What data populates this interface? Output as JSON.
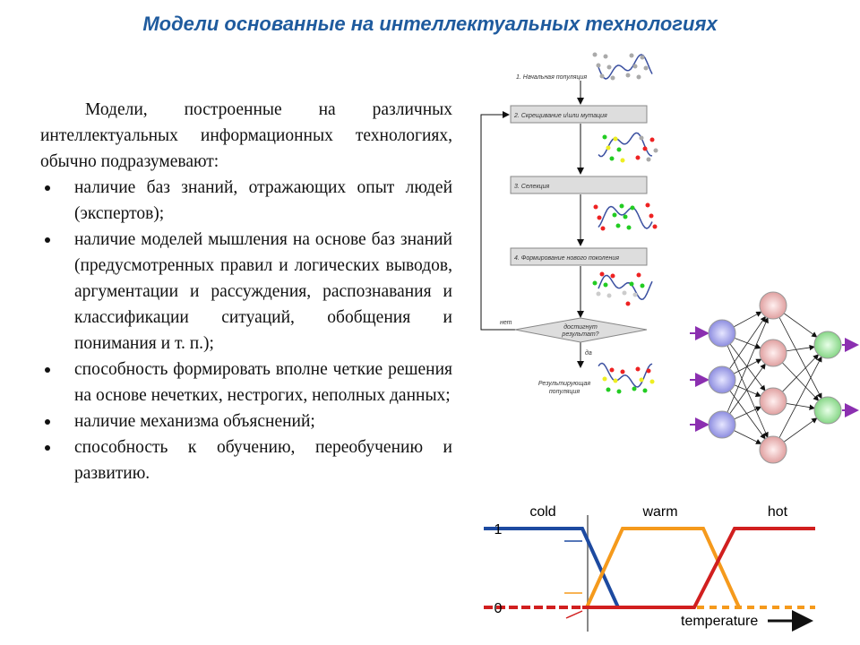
{
  "header": {
    "title": "Модели основанные на интеллектуальных технологиях"
  },
  "body": {
    "intro": "Модели, построенные на различных интеллектуальных информационных технологиях, обычно подразумевают:",
    "bullets": [
      "наличие баз знаний, отражающих опыт людей (экспертов);",
      "наличие моделей мышления на основе баз знаний (предусмотренных правил и логических выводов, аргументации и рассуждения, распознавания и классификации ситуаций, обобщения и понимания и т. п.);",
      "способность формировать вполне четкие решения на основе нечетких, нестрогих, неполных данных;",
      "наличие механизма объяснений;",
      "способность к обучению, переобучению и развитию."
    ]
  },
  "flowchart": {
    "steps": [
      "1. Начальная популяция",
      "2. Скрещивание и\\или мутация",
      "3. Селекция",
      "4. Формирование нового поколения"
    ],
    "decision": [
      "достигнут",
      "результат?"
    ],
    "no": "нет",
    "yes": "да",
    "result": [
      "Результирующая",
      "популяция"
    ]
  },
  "fuzzy": {
    "labels": [
      "cold",
      "warm",
      "hot"
    ],
    "one": "1",
    "zero": "0",
    "axis": "temperature"
  }
}
